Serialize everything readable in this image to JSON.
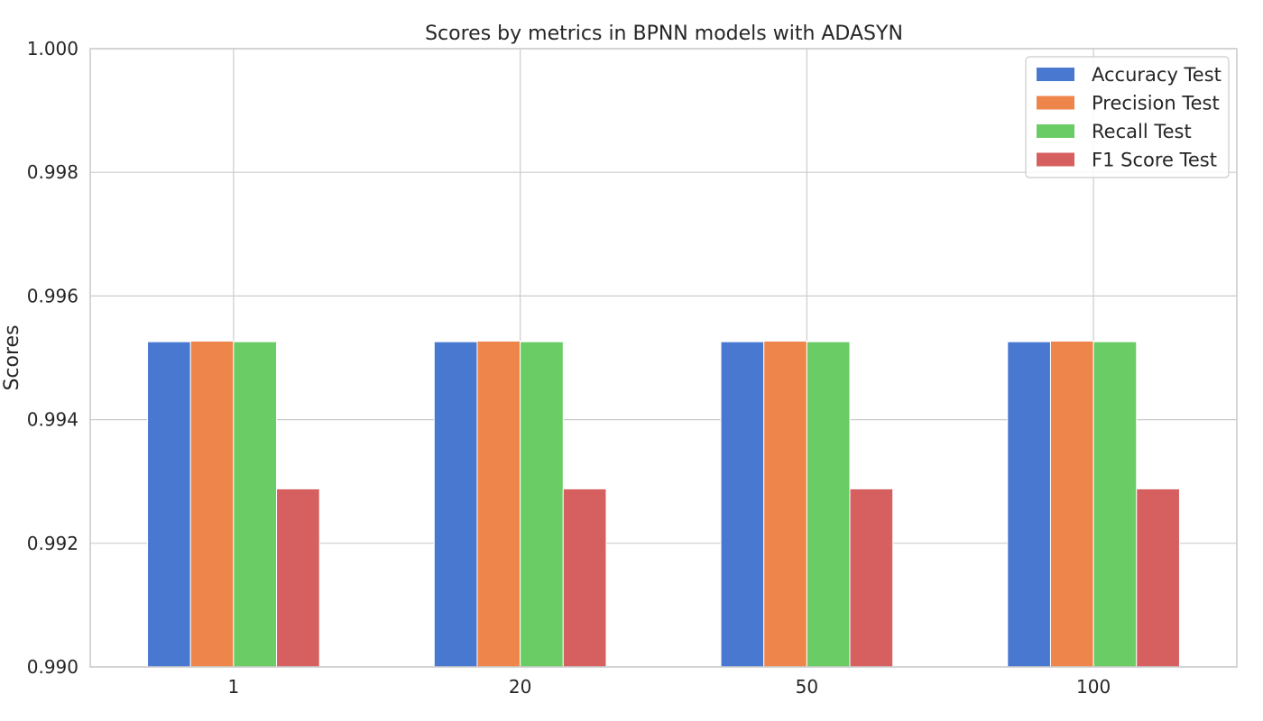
{
  "chart_data": {
    "type": "bar",
    "title": "Scores by metrics in BPNN models with ADASYN",
    "xlabel": "",
    "ylabel": "Scores",
    "categories": [
      "1",
      "20",
      "50",
      "100"
    ],
    "ylim": [
      0.99,
      1.0
    ],
    "yticks": [
      0.99,
      0.992,
      0.994,
      0.996,
      0.998,
      1.0
    ],
    "ytick_labels": [
      "0.990",
      "0.992",
      "0.994",
      "0.996",
      "0.998",
      "1.000"
    ],
    "grid": true,
    "legend_position": "top-right",
    "series": [
      {
        "name": "Accuracy Test",
        "color": "#4878d0",
        "values": [
          0.99526,
          0.99526,
          0.99526,
          0.99526
        ]
      },
      {
        "name": "Precision Test",
        "color": "#ee854a",
        "values": [
          0.99527,
          0.99527,
          0.99527,
          0.99527
        ]
      },
      {
        "name": "Recall Test",
        "color": "#6acc64",
        "values": [
          0.99526,
          0.99526,
          0.99526,
          0.99526
        ]
      },
      {
        "name": "F1 Score Test",
        "color": "#d65f5f",
        "values": [
          0.99288,
          0.99288,
          0.99288,
          0.99288
        ]
      }
    ]
  }
}
